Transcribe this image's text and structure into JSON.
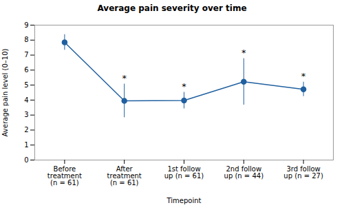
{
  "chart_data": {
    "type": "line",
    "title": "Average pain severity over time",
    "xlabel": "Timepoint",
    "ylabel": "Average pain level (0–10)",
    "categories": [
      "Before\ntreatment\n(n = 61)",
      "After\ntreatment\n(n = 61)",
      "1st follow\nup (n = 61)",
      "2nd follow\nup (n = 44)",
      "3rd follow\nup (n = 27)"
    ],
    "values": [
      7.85,
      3.95,
      3.97,
      5.22,
      4.72
    ],
    "errors": [
      0.52,
      1.12,
      0.55,
      1.55,
      0.48
    ],
    "significant": [
      false,
      true,
      true,
      true,
      true
    ],
    "significance_mark": "*",
    "color": "#2060a0",
    "ylim": [
      0,
      9
    ],
    "yticks": [
      0,
      1,
      2,
      3,
      4,
      5,
      6,
      7,
      8,
      9
    ],
    "grid": false
  }
}
